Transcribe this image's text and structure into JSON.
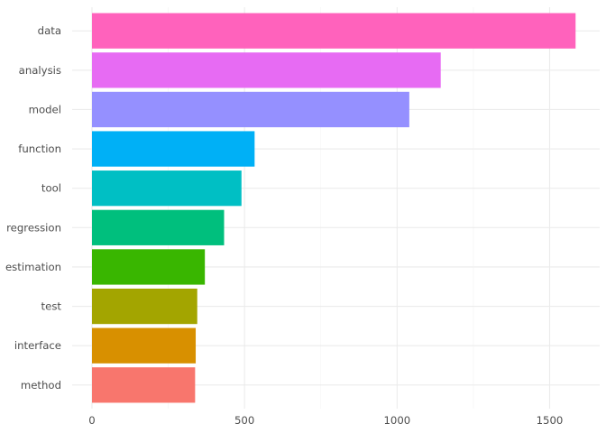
{
  "chart_data": {
    "type": "bar",
    "orientation": "horizontal",
    "title": "",
    "xlabel": "",
    "ylabel": "",
    "categories": [
      "method",
      "interface",
      "test",
      "estimation",
      "regression",
      "tool",
      "function",
      "model",
      "analysis",
      "data"
    ],
    "values": [
      338,
      340,
      345,
      370,
      433,
      490,
      533,
      1040,
      1143,
      1585
    ],
    "colors": [
      "#F8766D",
      "#D89000",
      "#A3A500",
      "#39B600",
      "#00BF7D",
      "#00BFC4",
      "#00B0F6",
      "#9590FF",
      "#E76BF3",
      "#FF62BC"
    ],
    "xlim": [
      -65,
      1664
    ],
    "xticks": [
      0,
      500,
      1000,
      1500
    ],
    "xtick_labels": [
      "0",
      "500",
      "1000",
      "1500"
    ],
    "grid": true,
    "legend": "none"
  }
}
